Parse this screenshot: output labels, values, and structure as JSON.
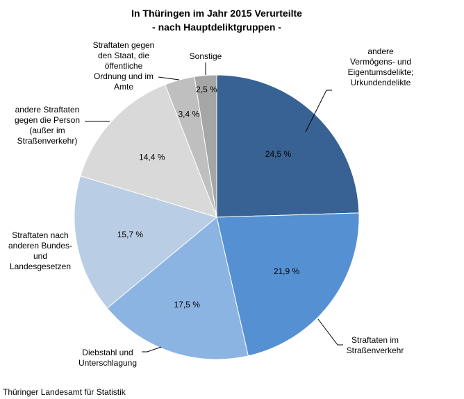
{
  "chart_data": {
    "type": "pie",
    "title": [
      "In Thüringen im Jahr 2015 Verurteilte",
      "- nach Hauptdeliktgruppen -"
    ],
    "source": "Thüringer Landesamt für Statistik",
    "unit": "%",
    "start_angle": "12 o'clock, clockwise",
    "slices": [
      {
        "label": [
          "andere",
          "Vermögens- und",
          "Eigentumsdelikte;",
          "Urkundendelikte"
        ],
        "value": 24.5,
        "value_label": "24,5 %",
        "color": "#386294"
      },
      {
        "label": [
          "Straftaten im",
          "Straßenverkehr"
        ],
        "value": 21.9,
        "value_label": "21,9 %",
        "color": "#5590d3"
      },
      {
        "label": [
          "Diebstahl und",
          "Unterschlagung"
        ],
        "value": 17.5,
        "value_label": "17,5 %",
        "color": "#8cb4e2"
      },
      {
        "label": [
          "Straftaten nach",
          "anderen Bundes-",
          "und",
          "Landesgesetzen"
        ],
        "value": 15.7,
        "value_label": "15,7 %",
        "color": "#b9cde5"
      },
      {
        "label": [
          "andere Straftaten",
          "gegen die Person",
          "(außer im",
          "Straßenverkehr)"
        ],
        "value": 14.4,
        "value_label": "14,4 %",
        "color": "#d9d9d9"
      },
      {
        "label": [
          "Straftaten gegen",
          "den Staat, die",
          "öffentliche",
          "Ordnung und im",
          "Amte"
        ],
        "value": 3.4,
        "value_label": "3,4 %",
        "color": "#bfbfbf"
      },
      {
        "label": [
          "Sonstige"
        ],
        "value": 2.5,
        "value_label": "2,5 %",
        "color": "#a6a6a6"
      }
    ]
  }
}
